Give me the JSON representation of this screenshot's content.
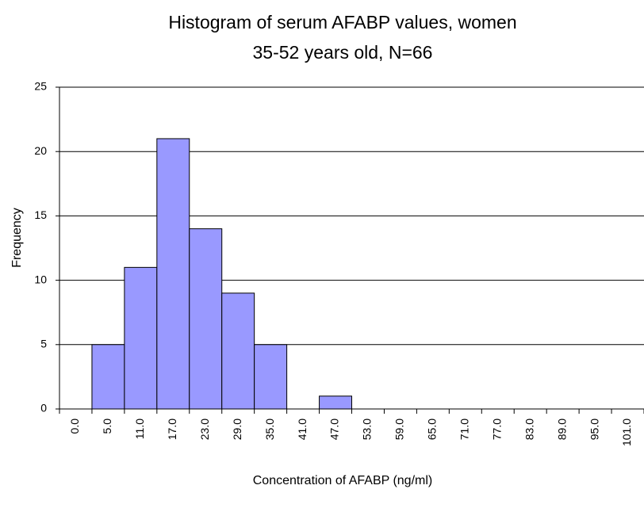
{
  "chart_data": {
    "type": "bar",
    "title": [
      "Histogram of serum AFABP values, women",
      "35-52 years old, N=66"
    ],
    "x_label": "Concentration of AFABP (ng/ml)",
    "y_label": "Frequency",
    "categories": [
      "0.0",
      "5.0",
      "11.0",
      "17.0",
      "23.0",
      "29.0",
      "35.0",
      "41.0",
      "47.0",
      "53.0",
      "59.0",
      "65.0",
      "71.0",
      "77.0",
      "83.0",
      "89.0",
      "95.0",
      "101.0"
    ],
    "values": [
      0,
      5,
      11,
      21,
      14,
      9,
      5,
      0,
      1,
      0,
      0,
      0,
      0,
      0,
      0,
      0,
      0,
      0
    ],
    "color": "#9999ff",
    "ylim": [
      0,
      25
    ],
    "yticks": [
      0,
      5,
      10,
      15,
      20,
      25
    ],
    "grid": true
  }
}
